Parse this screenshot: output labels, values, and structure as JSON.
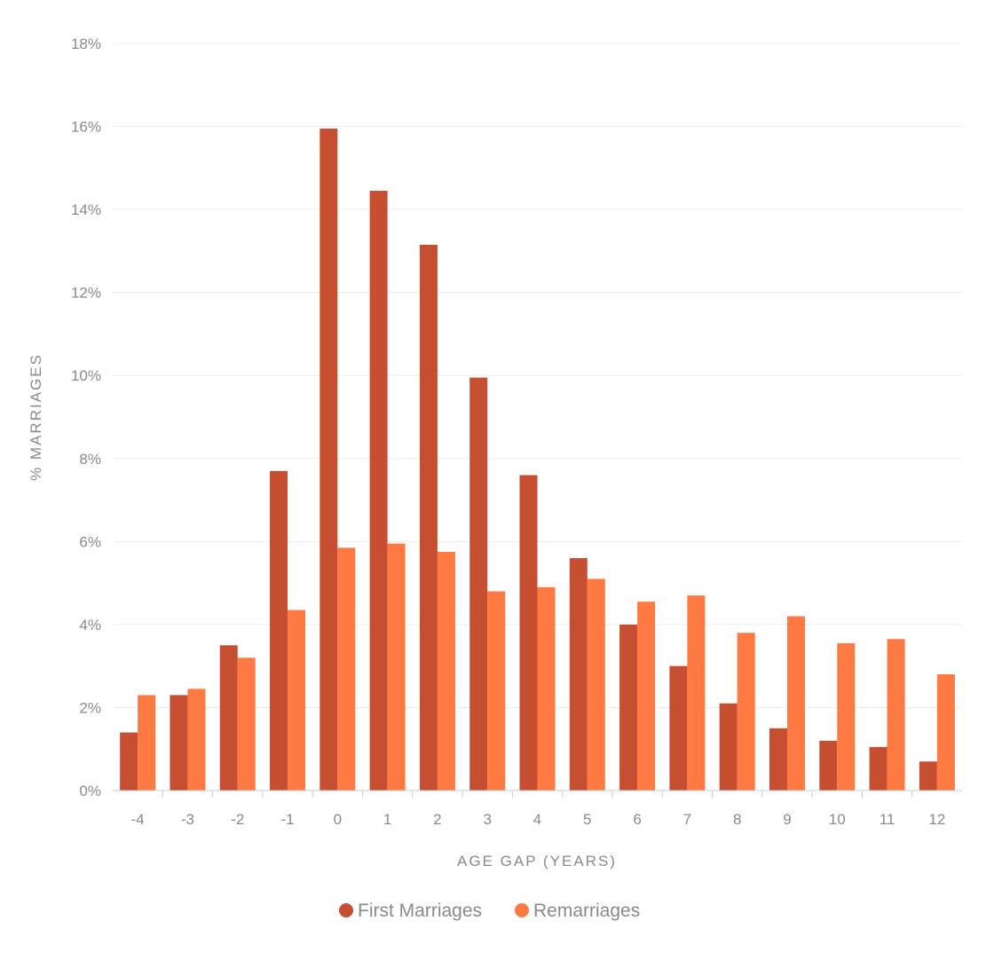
{
  "colors": {
    "first_marriages": "#c54f30",
    "remarriages": "#fe7a42",
    "text": "#8a8a8a",
    "grid": "#ececec",
    "axis": "#cccccc"
  },
  "chart_data": {
    "type": "bar",
    "xlabel": "AGE GAP (YEARS)",
    "ylabel": "% MARRIAGES",
    "ylim": [
      0,
      18
    ],
    "yticks": [
      "0%",
      "2%",
      "4%",
      "6%",
      "8%",
      "10%",
      "12%",
      "14%",
      "16%",
      "18%"
    ],
    "grid": true,
    "legend_position": "bottom-center",
    "categories": [
      "-4",
      "-3",
      "-2",
      "-1",
      "0",
      "1",
      "2",
      "3",
      "4",
      "5",
      "6",
      "7",
      "8",
      "9",
      "10",
      "11",
      "12"
    ],
    "series": [
      {
        "name": "First Marriages",
        "values": [
          1.4,
          2.3,
          3.5,
          7.7,
          15.95,
          14.45,
          13.15,
          9.95,
          7.6,
          5.6,
          4.0,
          3.0,
          2.1,
          1.5,
          1.2,
          1.05,
          0.7
        ]
      },
      {
        "name": "Remarriages",
        "values": [
          2.3,
          2.45,
          3.2,
          4.35,
          5.85,
          5.95,
          5.75,
          4.8,
          4.9,
          5.1,
          4.55,
          4.7,
          3.8,
          4.2,
          3.55,
          3.65,
          2.8
        ]
      }
    ]
  }
}
